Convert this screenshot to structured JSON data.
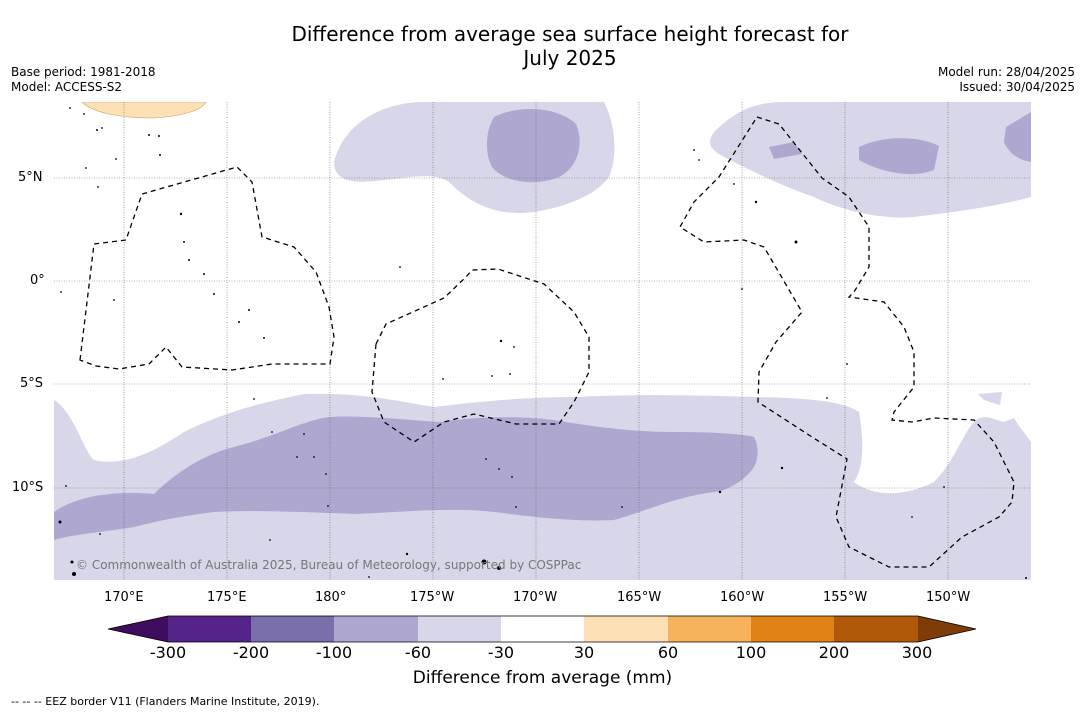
{
  "title_line1": "Difference from average sea surface height forecast for",
  "title_line2": "July 2025",
  "meta": {
    "base_period": "Base period: 1981-2018",
    "model": "Model: ACCESS-S2",
    "model_run": "Model run: 28/04/2025",
    "issued": "Issued: 30/04/2025"
  },
  "copyright": "© Commonwealth of Australia 2025, Bureau of Meteorology, supported by COSPPac",
  "lat_labels": [
    "5°N",
    "0°",
    "5°S",
    "10°S"
  ],
  "lon_labels": [
    "170°E",
    "175°E",
    "180°",
    "175°W",
    "170°W",
    "165°W",
    "160°W",
    "155°W",
    "150°W"
  ],
  "colorbar": {
    "ticks": [
      "-300",
      "-200",
      "-100",
      "-60",
      "-30",
      "30",
      "60",
      "100",
      "200",
      "300"
    ],
    "colors": [
      "#3f0d5e",
      "#54248a",
      "#7b6fab",
      "#aea8d1",
      "#d7d7e9",
      "#ffffff",
      "#fde0b5",
      "#f7b35b",
      "#e08216",
      "#b05a09",
      "#7f3b08"
    ],
    "title": "Difference from average (mm)"
  },
  "footnote": "-- -- -- EEZ border V11 (Flanders Marine Institute, 2019)."
}
